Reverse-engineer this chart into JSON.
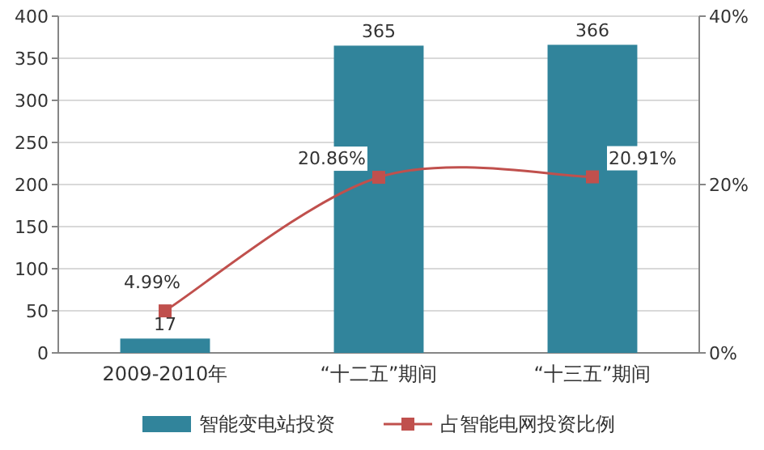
{
  "chart_data": {
    "type": "bar",
    "categories": [
      "2009-2010年",
      "“十二五”期间",
      "“十三五”期间"
    ],
    "series": [
      {
        "name": "智能变电站投资",
        "color": "#31849b",
        "values": [
          17,
          365,
          366
        ],
        "value_labels": [
          "17",
          "365",
          "366"
        ]
      },
      {
        "name": "占智能电网投资比例",
        "type": "line",
        "axis": "y2",
        "color": "#c0504d",
        "marker": "square",
        "values": [
          4.99,
          20.86,
          20.91
        ],
        "value_labels": [
          "4.99%",
          "20.86%",
          "20.91%"
        ]
      }
    ],
    "ylim": [
      0,
      400
    ],
    "yticks": [
      0,
      50,
      100,
      150,
      200,
      250,
      300,
      350,
      400
    ],
    "y2lim": [
      0,
      40
    ],
    "y2ticks": [
      {
        "value": 0,
        "label": "0%"
      },
      {
        "value": 20,
        "label": "20%"
      },
      {
        "value": 40,
        "label": "40%"
      }
    ],
    "grid": "y",
    "legend": "bottom"
  }
}
